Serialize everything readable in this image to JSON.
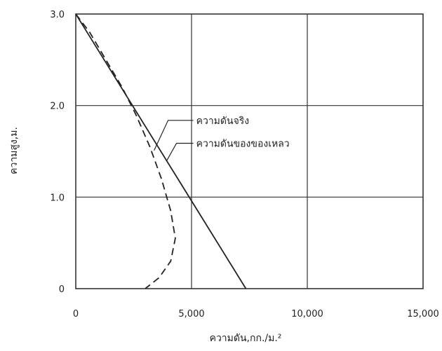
{
  "chart_data": {
    "type": "line",
    "xlabel": "ความดัน,กก./ม.²",
    "ylabel": "ความสูง,ม.",
    "xlim": [
      0,
      15000
    ],
    "ylim": [
      0,
      3.0
    ],
    "x_ticks": [
      0,
      5000,
      10000,
      15000
    ],
    "x_tick_labels": [
      "0",
      "5,000",
      "10,000",
      "15,000"
    ],
    "y_ticks": [
      0,
      1.0,
      2.0,
      3.0
    ],
    "y_tick_labels": [
      "0",
      "1.0",
      "2.0",
      "3.0"
    ],
    "grid": true,
    "series": [
      {
        "name": "ความดันจริง",
        "style": "dashed",
        "points": [
          [
            0,
            3.0
          ],
          [
            600,
            2.8
          ],
          [
            1300,
            2.5
          ],
          [
            2000,
            2.2
          ],
          [
            2600,
            1.9
          ],
          [
            3200,
            1.55
          ],
          [
            3700,
            1.2
          ],
          [
            4100,
            0.85
          ],
          [
            4300,
            0.55
          ],
          [
            4100,
            0.3
          ],
          [
            3600,
            0.12
          ],
          [
            3000,
            0
          ]
        ]
      },
      {
        "name": "ความดันของของเหลว",
        "style": "solid",
        "points": [
          [
            0,
            3.0
          ],
          [
            7350,
            0
          ]
        ]
      }
    ],
    "annotations": [
      {
        "text": "ความดันจริง",
        "x": 5200,
        "y": 1.8,
        "points_to_series": "ความดันจริง"
      },
      {
        "text": "ความดันของของเหลว",
        "x": 5200,
        "y": 1.55,
        "points_to_series": "ความดันของของเหลว"
      }
    ]
  },
  "colors": {
    "ink": "#222222",
    "grid": "#333333",
    "background": "#ffffff"
  }
}
